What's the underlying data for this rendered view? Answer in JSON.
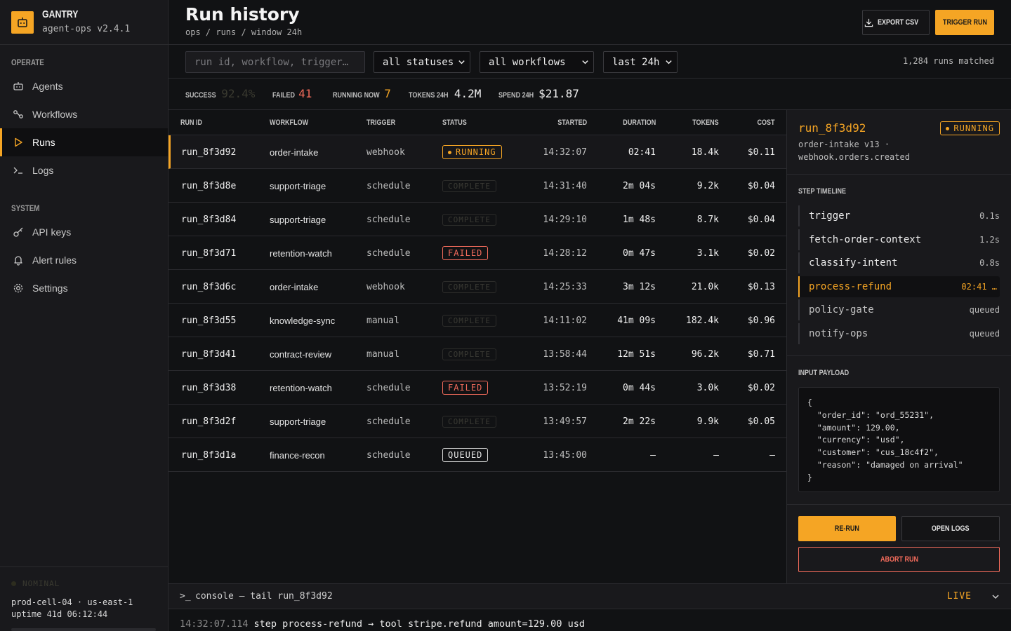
{
  "brand": {
    "name": "GANTRY",
    "version": "agent-ops v2.4.1"
  },
  "sidebar": {
    "sections": [
      {
        "label": "OPERATE",
        "items": [
          {
            "label": "Agents",
            "icon": "robot-icon",
            "active": false
          },
          {
            "label": "Workflows",
            "icon": "workflow-icon",
            "active": false
          },
          {
            "label": "Runs",
            "icon": "play-icon",
            "active": true
          },
          {
            "label": "Logs",
            "icon": "terminal-icon",
            "active": false
          }
        ]
      },
      {
        "label": "SYSTEM",
        "items": [
          {
            "label": "API keys",
            "icon": "key-icon",
            "active": false
          },
          {
            "label": "Alert rules",
            "icon": "bell-icon",
            "active": false
          },
          {
            "label": "Settings",
            "icon": "gear-icon",
            "active": false
          }
        ]
      }
    ],
    "system_status": {
      "badge": "NOMINAL",
      "line1": "prod-cell-04 · us-east-1",
      "line2": "uptime 41d 06:12:44"
    }
  },
  "header": {
    "title": "Run history",
    "breadcrumb": "ops / runs / window 24h",
    "export_label": "EXPORT CSV",
    "trigger_label": "TRIGGER RUN"
  },
  "filters": {
    "search_placeholder": "run id, workflow, trigger…",
    "status": "all statuses",
    "workflow": "all workflows",
    "window": "last 24h",
    "matched": "1,284 runs matched"
  },
  "metrics": [
    {
      "label": "SUCCESS",
      "value": "92.4%",
      "color": "#3a3a30"
    },
    {
      "label": "FAILED",
      "value": "41",
      "color": "#f26b5b"
    },
    {
      "label": "RUNNING NOW",
      "value": "7",
      "color": "#f5a524"
    },
    {
      "label": "TOKENS 24H",
      "value": "4.2M",
      "color": "#f0f0f0"
    },
    {
      "label": "SPEND 24H",
      "value": "$21.87",
      "color": "#f0f0f0"
    }
  ],
  "table": {
    "columns": [
      "RUN ID",
      "WORKFLOW",
      "TRIGGER",
      "STATUS",
      "STARTED",
      "DURATION",
      "TOKENS",
      "COST"
    ],
    "rows": [
      {
        "id": "run_8f3d92",
        "workflow": "order-intake",
        "trigger": "webhook",
        "status": "RUNNING",
        "started": "14:32:07",
        "duration": "02:41",
        "tokens": "18.4k",
        "cost": "$0.11",
        "selected": true
      },
      {
        "id": "run_8f3d8e",
        "workflow": "support-triage",
        "trigger": "schedule",
        "status": "COMPLETE",
        "started": "14:31:40",
        "duration": "2m 04s",
        "tokens": "9.2k",
        "cost": "$0.04"
      },
      {
        "id": "run_8f3d84",
        "workflow": "support-triage",
        "trigger": "schedule",
        "status": "COMPLETE",
        "started": "14:29:10",
        "duration": "1m 48s",
        "tokens": "8.7k",
        "cost": "$0.04"
      },
      {
        "id": "run_8f3d71",
        "workflow": "retention-watch",
        "trigger": "schedule",
        "status": "FAILED",
        "started": "14:28:12",
        "duration": "0m 47s",
        "tokens": "3.1k",
        "cost": "$0.02"
      },
      {
        "id": "run_8f3d6c",
        "workflow": "order-intake",
        "trigger": "webhook",
        "status": "COMPLETE",
        "started": "14:25:33",
        "duration": "3m 12s",
        "tokens": "21.0k",
        "cost": "$0.13"
      },
      {
        "id": "run_8f3d55",
        "workflow": "knowledge-sync",
        "trigger": "manual",
        "status": "COMPLETE",
        "started": "14:11:02",
        "duration": "41m 09s",
        "tokens": "182.4k",
        "cost": "$0.96"
      },
      {
        "id": "run_8f3d41",
        "workflow": "contract-review",
        "trigger": "manual",
        "status": "COMPLETE",
        "started": "13:58:44",
        "duration": "12m 51s",
        "tokens": "96.2k",
        "cost": "$0.71"
      },
      {
        "id": "run_8f3d38",
        "workflow": "retention-watch",
        "trigger": "schedule",
        "status": "FAILED",
        "started": "13:52:19",
        "duration": "0m 44s",
        "tokens": "3.0k",
        "cost": "$0.02"
      },
      {
        "id": "run_8f3d2f",
        "workflow": "support-triage",
        "trigger": "schedule",
        "status": "COMPLETE",
        "started": "13:49:57",
        "duration": "2m 22s",
        "tokens": "9.9k",
        "cost": "$0.05"
      },
      {
        "id": "run_8f3d1a",
        "workflow": "finance-recon",
        "trigger": "schedule",
        "status": "QUEUED",
        "started": "13:45:00",
        "duration": "—",
        "tokens": "—",
        "cost": "—"
      }
    ]
  },
  "detail": {
    "run_id": "run_8f3d92",
    "status": "RUNNING",
    "meta1": "order-intake v13 ·",
    "meta2": "webhook.orders.created",
    "timeline_label": "STEP TIMELINE",
    "steps": [
      {
        "name": "trigger",
        "time": "0.1s",
        "state": "done"
      },
      {
        "name": "fetch-order-context",
        "time": "1.2s",
        "state": "done"
      },
      {
        "name": "classify-intent",
        "time": "0.8s",
        "state": "done"
      },
      {
        "name": "process-refund",
        "time": "02:41 …",
        "state": "active"
      },
      {
        "name": "policy-gate",
        "time": "queued",
        "state": "queued"
      },
      {
        "name": "notify-ops",
        "time": "queued",
        "state": "queued"
      }
    ],
    "payload_label": "INPUT PAYLOAD",
    "payload": "{\n  \"order_id\": \"ord_55231\",\n  \"amount\": 129.00,\n  \"currency\": \"usd\",\n  \"customer\": \"cus_18c4f2\",\n  \"reason\": \"damaged on arrival\"\n}",
    "rerun_label": "RE-RUN",
    "logs_label": "OPEN LOGS",
    "abort_label": "ABORT RUN"
  },
  "console": {
    "prompt": ">_",
    "title": "console — tail run_8f3d92",
    "live": "LIVE",
    "line_ts": "14:32:07.114",
    "line_msg": "step process-refund → tool stripe.refund amount=129.00 usd"
  },
  "colors": {
    "accent": "#f5a524",
    "danger": "#f26b5b",
    "bg": "#111214",
    "panel": "#19191c"
  }
}
